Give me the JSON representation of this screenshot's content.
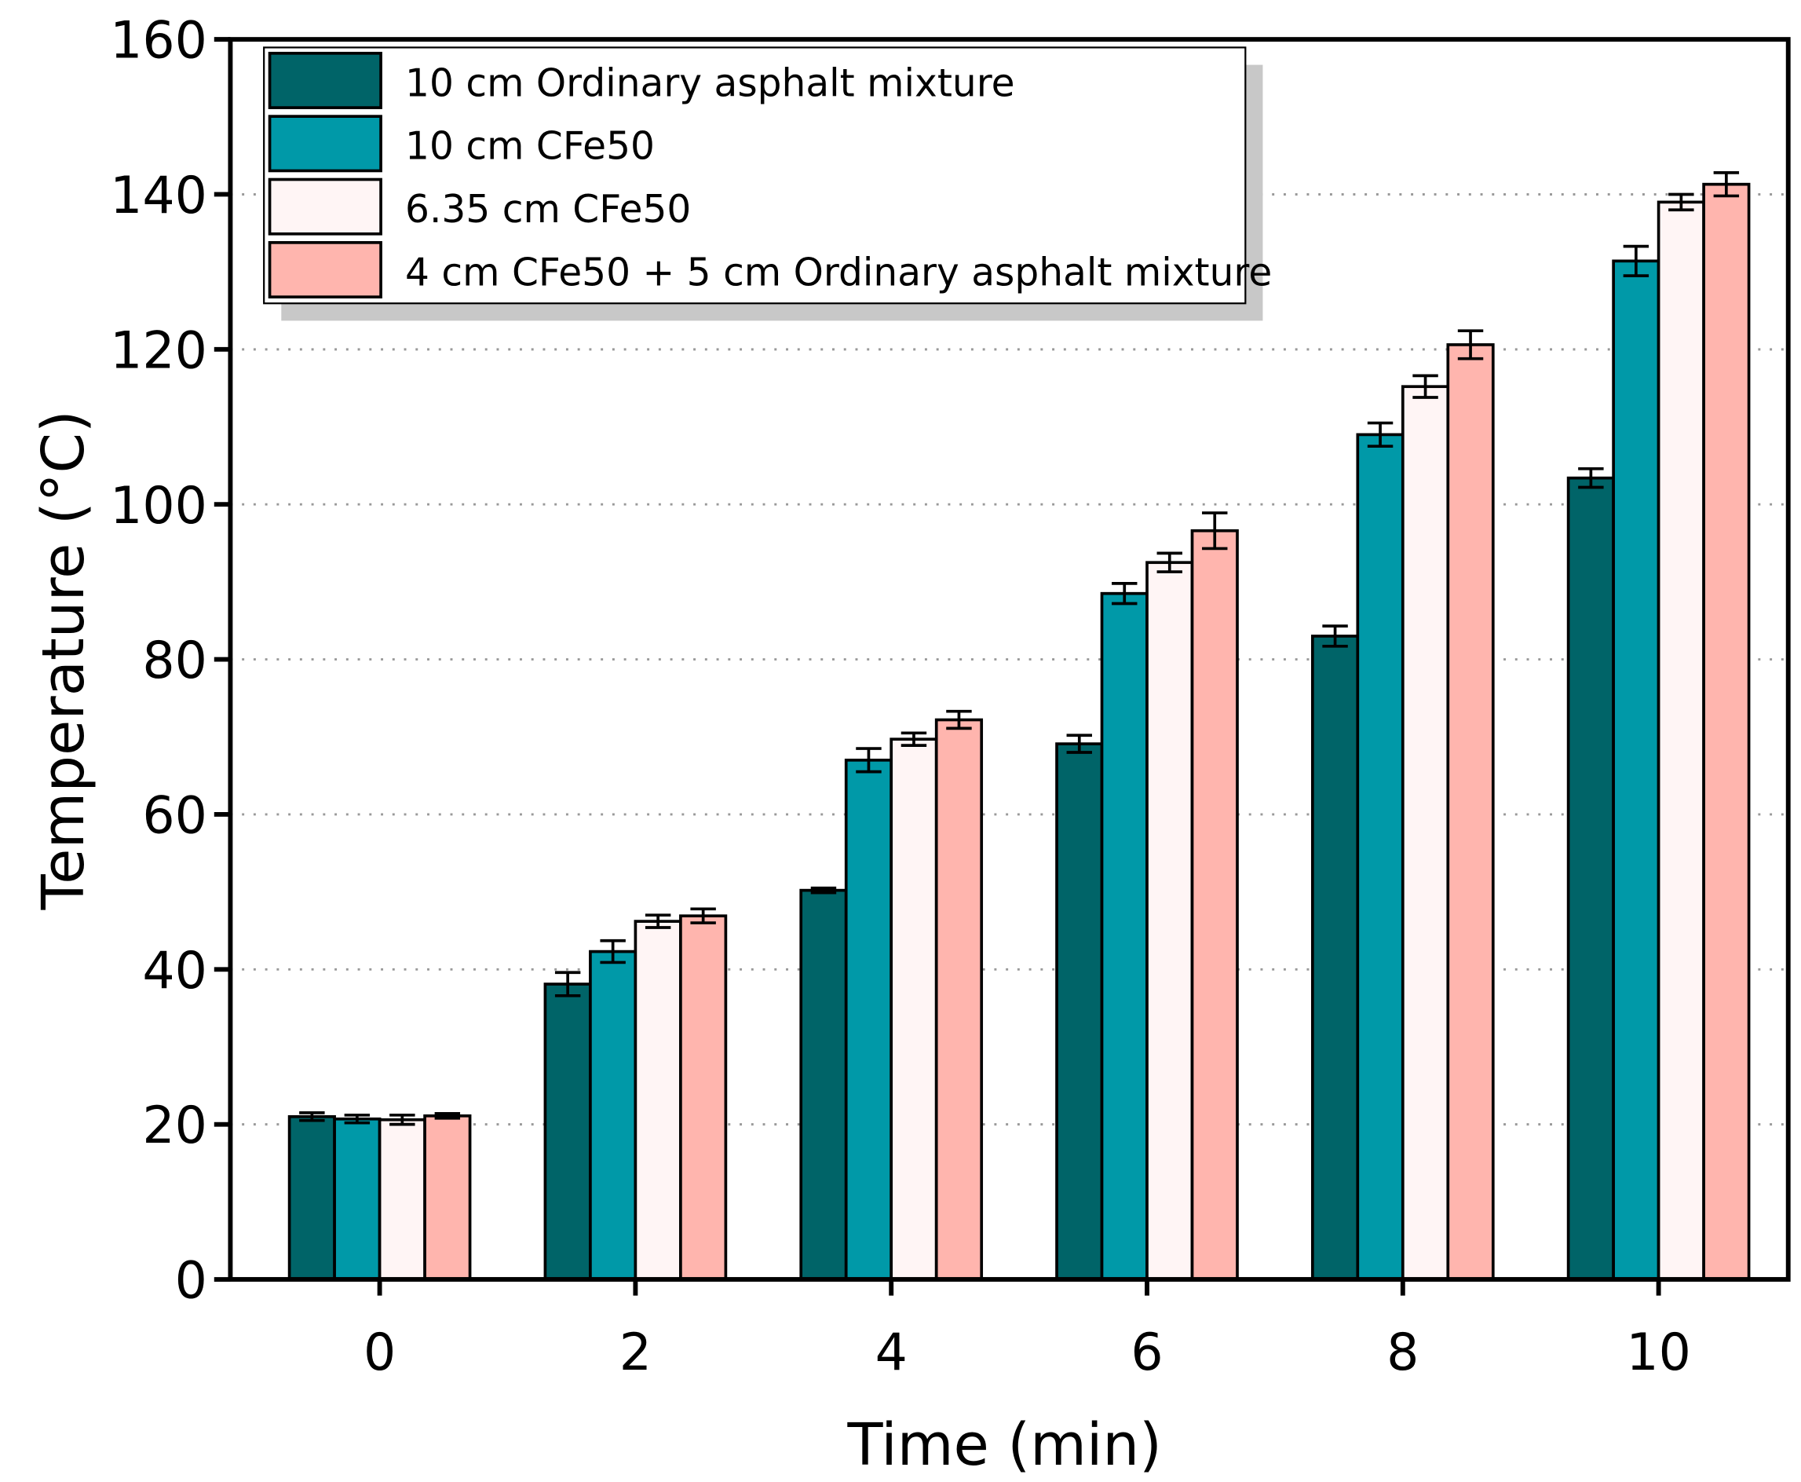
{
  "chart_data": {
    "type": "bar",
    "title": "",
    "xlabel": "Time (min)",
    "ylabel": "Temperature (°C)",
    "categories": [
      "0",
      "2",
      "4",
      "6",
      "8",
      "10"
    ],
    "ylim": [
      0,
      160
    ],
    "yticks": [
      0,
      20,
      40,
      60,
      80,
      100,
      120,
      140,
      160
    ],
    "grid": "horizontal dotted",
    "legend_placement": "top-left",
    "series": [
      {
        "name": "10 cm Ordinary asphalt mixture",
        "color": "#006468",
        "values": [
          21.0,
          38.1,
          50.2,
          69.1,
          83.0,
          103.4
        ],
        "errors": [
          0.5,
          1.5,
          0.3,
          1.1,
          1.3,
          1.2
        ]
      },
      {
        "name": "10 cm CFe50",
        "color": "#0099A8",
        "values": [
          20.7,
          42.3,
          67.0,
          88.5,
          109.0,
          131.4
        ],
        "errors": [
          0.5,
          1.4,
          1.5,
          1.3,
          1.5,
          1.9
        ]
      },
      {
        "name": "6.35 cm CFe50",
        "color": "#FFF5F5",
        "values": [
          20.6,
          46.2,
          69.7,
          92.5,
          115.2,
          139.0
        ],
        "errors": [
          0.6,
          0.8,
          0.8,
          1.2,
          1.4,
          1.0
        ]
      },
      {
        "name": "4 cm CFe50 + 5 cm Ordinary asphalt mixture",
        "color": "#FFB5AE",
        "values": [
          21.1,
          46.9,
          72.2,
          96.6,
          120.6,
          141.3
        ],
        "errors": [
          0.3,
          0.9,
          1.1,
          2.3,
          1.8,
          1.5
        ]
      }
    ]
  }
}
